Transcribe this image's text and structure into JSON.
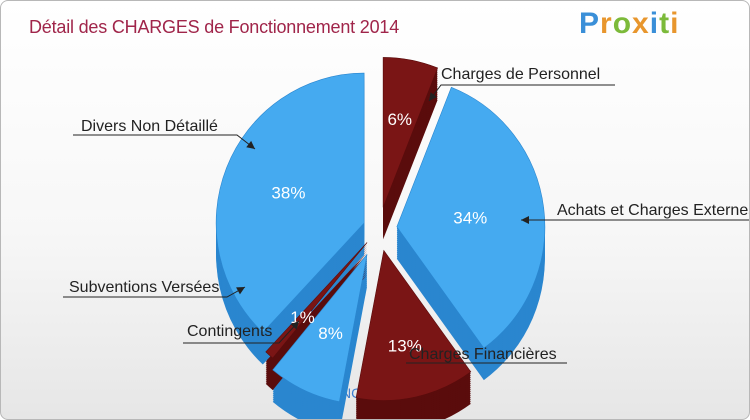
{
  "header": {
    "title": "Détail des CHARGES de Fonctionnement 2014",
    "logo": [
      "P",
      "r",
      "o",
      "x",
      "i",
      "t",
      "i"
    ]
  },
  "footer": {
    "location": "THONNANCE-LES-MOULINS"
  },
  "colors": {
    "blue_top": "#45aaf0",
    "blue_side": "#2a86cf",
    "red_top": "#7a1515",
    "red_side": "#5a0c0c",
    "title": "#a0254a",
    "location": "#3d7fd1",
    "logo": [
      "#3a8fd8",
      "#e8962d",
      "#7cba3a",
      "#e8962d",
      "#3a8fd8",
      "#7cba3a",
      "#e8962d"
    ]
  },
  "chart_data": {
    "type": "pie",
    "title": "Détail des CHARGES de Fonctionnement 2014",
    "subtitle": "THONNANCE-LES-MOULINS",
    "labels": [
      "Charges de Personnel",
      "Achats et Charges Externes",
      "Charges Financières",
      "Contingents",
      "Subventions Versées",
      "Divers Non Détaillé"
    ],
    "values": [
      6,
      34,
      13,
      8,
      1,
      38
    ],
    "value_labels": [
      "6%",
      "34%",
      "13%",
      "8%",
      "1%",
      "38%"
    ],
    "colors": [
      "red",
      "blue",
      "red",
      "blue",
      "red",
      "blue"
    ],
    "exploded": true,
    "three_d": true
  }
}
